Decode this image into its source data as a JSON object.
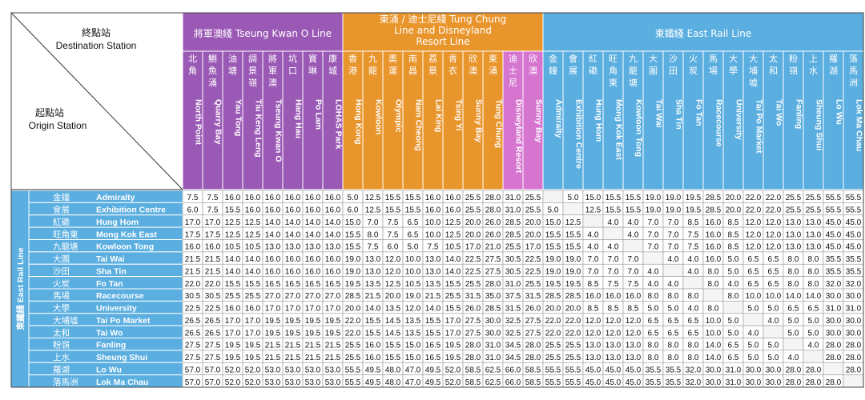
{
  "corner": {
    "destination_zh": "終點站",
    "destination_en": "Destination Station",
    "origin_zh": "起點站",
    "origin_en": "Origin Station"
  },
  "lines": [
    {
      "title": "將軍澳綫 Tseung Kwan O Line",
      "color": "#9b59b6",
      "span": 8
    },
    {
      "title": "東涌 / 迪士尼綫 Tung Chung Line and Disneyland Resort Line",
      "color": "#e8952c",
      "span": 10
    },
    {
      "title": "東鐵綫 East Rail Line",
      "color": "#5aaee0",
      "span": 16
    }
  ],
  "side_label": "東鐵綫 East Rail Line",
  "columns": [
    {
      "zh": "北角",
      "en": "North Point"
    },
    {
      "zh": "鰂魚涌",
      "en": "Quarry Bay"
    },
    {
      "zh": "油塘",
      "en": "Yau Tong"
    },
    {
      "zh": "調景嶺",
      "en": "Tiu Keng Leng"
    },
    {
      "zh": "將軍澳",
      "en": "Tseung Kwan O"
    },
    {
      "zh": "坑口",
      "en": "Hang Hau"
    },
    {
      "zh": "寶琳",
      "en": "Po Lam"
    },
    {
      "zh": "康城",
      "en": "LOHAS Park"
    },
    {
      "zh": "香港",
      "en": "Hong Kong"
    },
    {
      "zh": "九龍",
      "en": "Kowloon"
    },
    {
      "zh": "奧運",
      "en": "Olympic"
    },
    {
      "zh": "南昌",
      "en": "Nam Cheong"
    },
    {
      "zh": "荔景",
      "en": "Lai King"
    },
    {
      "zh": "青衣",
      "en": "Tsing Yi"
    },
    {
      "zh": "欣澳",
      "en": "Sunny Bay"
    },
    {
      "zh": "東涌",
      "en": "Tung Chung"
    },
    {
      "zh": "迪士尼",
      "en": "Disneyland Resort"
    },
    {
      "zh": "欣澳",
      "en": "Sunny Bay"
    },
    {
      "zh": "金鐘",
      "en": "Admiralty"
    },
    {
      "zh": "會展",
      "en": "Exhibition Centre"
    },
    {
      "zh": "紅磡",
      "en": "Hung Hom"
    },
    {
      "zh": "旺角東",
      "en": "Mong Kok East"
    },
    {
      "zh": "九龍塘",
      "en": "Kowloon Tong"
    },
    {
      "zh": "大圍",
      "en": "Tai Wai"
    },
    {
      "zh": "沙田",
      "en": "Sha Tin"
    },
    {
      "zh": "火炭",
      "en": "Fo Tan"
    },
    {
      "zh": "馬場",
      "en": "Racecourse"
    },
    {
      "zh": "大學",
      "en": "University"
    },
    {
      "zh": "大埔墟",
      "en": "Tai Po Market"
    },
    {
      "zh": "太和",
      "en": "Tai Wo"
    },
    {
      "zh": "粉嶺",
      "en": "Fanling"
    },
    {
      "zh": "上水",
      "en": "Sheung Shui"
    },
    {
      "zh": "羅湖",
      "en": "Lo Wu"
    },
    {
      "zh": "落馬洲",
      "en": "Lok Ma Chau"
    }
  ],
  "rows": [
    {
      "zh": "金鐘",
      "en": "Admiralty",
      "values": [
        "7.5",
        "7.5",
        "16.0",
        "16.0",
        "16.0",
        "16.0",
        "16.0",
        "16.0",
        "5.0",
        "12.5",
        "15.5",
        "15.5",
        "16.0",
        "16.0",
        "25.5",
        "28.0",
        "31.0",
        "25.5",
        "",
        "5.0",
        "15.0",
        "15.5",
        "15.5",
        "19.0",
        "19.0",
        "19.5",
        "28.5",
        "20.0",
        "22.0",
        "22.0",
        "25.5",
        "25.5",
        "55.5",
        "55.5"
      ]
    },
    {
      "zh": "會展",
      "en": "Exhibition Centre",
      "values": [
        "6.0",
        "7.5",
        "15.5",
        "16.0",
        "16.0",
        "16.0",
        "16.0",
        "16.0",
        "6.0",
        "12.5",
        "15.5",
        "15.5",
        "16.0",
        "16.0",
        "25.5",
        "28.0",
        "31.0",
        "25.5",
        "5.0",
        "",
        "12.5",
        "15.5",
        "15.5",
        "19.0",
        "19.0",
        "19.5",
        "28.5",
        "20.0",
        "22.0",
        "22.0",
        "25.5",
        "25.5",
        "55.5",
        "55.5"
      ]
    },
    {
      "zh": "紅磡",
      "en": "Hung Hom",
      "values": [
        "17.0",
        "17.0",
        "12.5",
        "12.5",
        "14.0",
        "14.0",
        "14.0",
        "14.0",
        "15.0",
        "7.0",
        "7.5",
        "6.5",
        "10.0",
        "12.5",
        "20.0",
        "26.0",
        "28.5",
        "20.0",
        "15.0",
        "12.5",
        "",
        "4.0",
        "4.0",
        "7.0",
        "7.0",
        "8.5",
        "16.0",
        "8.5",
        "12.0",
        "12.0",
        "13.0",
        "13.0",
        "45.0",
        "45.0"
      ]
    },
    {
      "zh": "旺角東",
      "en": "Mong Kok East",
      "values": [
        "17.5",
        "17.5",
        "12.5",
        "12.5",
        "14.0",
        "14.0",
        "14.0",
        "14.0",
        "15.5",
        "8.0",
        "7.5",
        "6.5",
        "10.0",
        "12.5",
        "20.0",
        "26.0",
        "28.5",
        "20.0",
        "15.5",
        "15.5",
        "4.0",
        "",
        "4.0",
        "7.0",
        "7.0",
        "7.5",
        "16.0",
        "8.5",
        "12.0",
        "12.0",
        "13.0",
        "13.0",
        "45.0",
        "45.0"
      ]
    },
    {
      "zh": "九龍塘",
      "en": "Kowloon Tong",
      "values": [
        "16.0",
        "16.0",
        "10.5",
        "10.5",
        "13.0",
        "13.0",
        "13.0",
        "13.0",
        "15.5",
        "7.5",
        "6.0",
        "5.0",
        "7.5",
        "10.5",
        "17.0",
        "21.0",
        "25.5",
        "17.0",
        "15.5",
        "15.5",
        "4.0",
        "4.0",
        "",
        "7.0",
        "7.0",
        "7.5",
        "16.0",
        "8.5",
        "12.0",
        "12.0",
        "13.0",
        "13.0",
        "45.0",
        "45.0"
      ]
    },
    {
      "zh": "大圍",
      "en": "Tai Wai",
      "values": [
        "21.5",
        "21.5",
        "14.0",
        "14.0",
        "16.0",
        "16.0",
        "16.0",
        "16.0",
        "19.0",
        "13.0",
        "12.0",
        "10.0",
        "13.0",
        "14.0",
        "22.5",
        "27.5",
        "30.5",
        "22.5",
        "19.0",
        "19.0",
        "7.0",
        "7.0",
        "7.0",
        "",
        "4.0",
        "4.0",
        "16.0",
        "5.0",
        "6.5",
        "6.5",
        "8.0",
        "8.0",
        "35.5",
        "35.5"
      ]
    },
    {
      "zh": "沙田",
      "en": "Sha Tin",
      "values": [
        "21.5",
        "21.5",
        "14.0",
        "14.0",
        "16.0",
        "16.0",
        "16.0",
        "16.0",
        "19.0",
        "13.0",
        "12.0",
        "10.0",
        "13.0",
        "14.0",
        "22.5",
        "27.5",
        "30.5",
        "22.5",
        "19.0",
        "19.0",
        "7.0",
        "7.0",
        "7.0",
        "4.0",
        "",
        "4.0",
        "8.0",
        "5.0",
        "6.5",
        "6.5",
        "8.0",
        "8.0",
        "35.5",
        "35.5"
      ]
    },
    {
      "zh": "火炭",
      "en": "Fo Tan",
      "values": [
        "22.0",
        "22.0",
        "15.5",
        "15.5",
        "16.5",
        "16.5",
        "16.5",
        "16.5",
        "19.5",
        "13.5",
        "12.5",
        "10.5",
        "13.5",
        "15.5",
        "25.5",
        "28.0",
        "31.0",
        "25.5",
        "19.5",
        "19.5",
        "8.5",
        "7.5",
        "7.5",
        "4.0",
        "4.0",
        "",
        "8.0",
        "4.0",
        "6.5",
        "6.5",
        "8.0",
        "8.0",
        "32.0",
        "32.0"
      ]
    },
    {
      "zh": "馬場",
      "en": "Racecourse",
      "values": [
        "30.5",
        "30.5",
        "25.5",
        "25.5",
        "27.0",
        "27.0",
        "27.0",
        "27.0",
        "28.5",
        "21.5",
        "20.0",
        "19.0",
        "21.5",
        "25.5",
        "31.5",
        "35.0",
        "37.5",
        "31.5",
        "28.5",
        "28.5",
        "16.0",
        "16.0",
        "16.0",
        "8.0",
        "8.0",
        "8.0",
        "",
        "8.0",
        "10.0",
        "10.0",
        "14.0",
        "14.0",
        "30.0",
        "30.0"
      ]
    },
    {
      "zh": "大學",
      "en": "University",
      "values": [
        "22.5",
        "22.5",
        "16.0",
        "16.0",
        "17.0",
        "17.0",
        "17.0",
        "17.0",
        "20.0",
        "14.0",
        "13.5",
        "12.0",
        "14.0",
        "15.5",
        "26.0",
        "28.5",
        "31.5",
        "26.0",
        "20.0",
        "20.0",
        "8.5",
        "8.5",
        "8.5",
        "5.0",
        "5.0",
        "4.0",
        "8.0",
        "",
        "5.0",
        "5.0",
        "6.5",
        "6.5",
        "31.0",
        "31.0"
      ]
    },
    {
      "zh": "大埔墟",
      "en": "Tai Po Market",
      "values": [
        "26.5",
        "26.5",
        "17.0",
        "17.0",
        "19.5",
        "19.5",
        "19.5",
        "19.5",
        "22.0",
        "15.5",
        "14.5",
        "13.5",
        "15.5",
        "17.0",
        "27.5",
        "30.0",
        "32.5",
        "27.5",
        "22.0",
        "22.0",
        "12.0",
        "12.0",
        "12.0",
        "6.5",
        "6.5",
        "6.5",
        "10.0",
        "5.0",
        "",
        "4.0",
        "5.0",
        "5.0",
        "30.0",
        "30.0"
      ]
    },
    {
      "zh": "太和",
      "en": "Tai Wo",
      "values": [
        "26.5",
        "26.5",
        "17.0",
        "17.0",
        "19.5",
        "19.5",
        "19.5",
        "19.5",
        "22.0",
        "15.5",
        "14.5",
        "13.5",
        "15.5",
        "17.0",
        "27.5",
        "30.0",
        "32.5",
        "27.5",
        "22.0",
        "22.0",
        "12.0",
        "12.0",
        "12.0",
        "6.5",
        "6.5",
        "6.5",
        "10.0",
        "5.0",
        "4.0",
        "",
        "5.0",
        "5.0",
        "30.0",
        "30.0"
      ]
    },
    {
      "zh": "粉嶺",
      "en": "Fanling",
      "values": [
        "27.5",
        "27.5",
        "19.5",
        "19.5",
        "21.5",
        "21.5",
        "21.5",
        "21.5",
        "25.5",
        "16.0",
        "15.5",
        "15.0",
        "16.5",
        "19.5",
        "28.0",
        "31.0",
        "34.5",
        "28.0",
        "25.5",
        "25.5",
        "13.0",
        "13.0",
        "13.0",
        "8.0",
        "8.0",
        "8.0",
        "14.0",
        "6.5",
        "5.0",
        "5.0",
        "",
        "4.0",
        "28.0",
        "28.0"
      ]
    },
    {
      "zh": "上水",
      "en": "Sheung Shui",
      "values": [
        "27.5",
        "27.5",
        "19.5",
        "19.5",
        "21.5",
        "21.5",
        "21.5",
        "21.5",
        "25.5",
        "16.0",
        "15.5",
        "15.0",
        "16.5",
        "19.5",
        "28.0",
        "31.0",
        "34.5",
        "28.0",
        "25.5",
        "25.5",
        "13.0",
        "13.0",
        "13.0",
        "8.0",
        "8.0",
        "8.0",
        "14.0",
        "6.5",
        "5.0",
        "5.0",
        "4.0",
        "",
        "28.0",
        "28.0"
      ]
    },
    {
      "zh": "羅湖",
      "en": "Lo Wu",
      "values": [
        "57.0",
        "57.0",
        "52.0",
        "52.0",
        "53.0",
        "53.0",
        "53.0",
        "53.0",
        "55.5",
        "49.5",
        "48.0",
        "47.0",
        "49.5",
        "52.0",
        "58.5",
        "62.5",
        "66.0",
        "58.5",
        "55.5",
        "55.5",
        "45.0",
        "45.0",
        "45.0",
        "35.5",
        "35.5",
        "32.0",
        "30.0",
        "31.0",
        "30.0",
        "30.0",
        "28.0",
        "28.0",
        "",
        "28.0"
      ]
    },
    {
      "zh": "落馬洲",
      "en": "Lok Ma Chau",
      "values": [
        "57.0",
        "57.0",
        "52.0",
        "52.0",
        "53.0",
        "53.0",
        "53.0",
        "53.0",
        "55.5",
        "49.5",
        "48.0",
        "47.0",
        "49.5",
        "52.0",
        "58.5",
        "62.5",
        "66.0",
        "58.5",
        "55.5",
        "55.5",
        "45.0",
        "45.0",
        "45.0",
        "35.5",
        "35.5",
        "32.0",
        "30.0",
        "31.0",
        "30.0",
        "30.0",
        "28.0",
        "28.0",
        "28.0",
        ""
      ]
    }
  ]
}
